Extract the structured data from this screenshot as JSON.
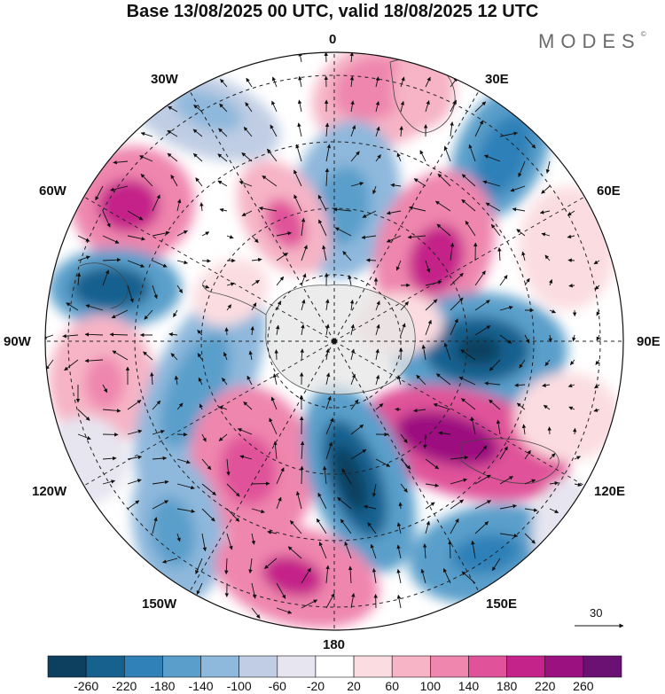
{
  "title": "Base 13/08/2025 00 UTC, valid 18/08/2025 12 UTC",
  "brand": {
    "name": "MODES",
    "mark": "©"
  },
  "longitude_labels": {
    "lon_0": "0",
    "lon_30e": "30E",
    "lon_60e": "60E",
    "lon_90e": "90E",
    "lon_120e": "120E",
    "lon_150e": "150E",
    "lon_180": "180",
    "lon_150w": "150W",
    "lon_120w": "120W",
    "lon_90w": "90W",
    "lon_60w": "60W",
    "lon_30w": "30W"
  },
  "reference_vector": {
    "label": "30"
  },
  "colorbar": {
    "ticks": [
      "-260",
      "-220",
      "-180",
      "-140",
      "-100",
      "-60",
      "-20",
      "20",
      "60",
      "100",
      "140",
      "180",
      "220",
      "260"
    ],
    "colors": [
      "#0d3f5f",
      "#17618f",
      "#2f81b8",
      "#5a9fcb",
      "#8eb8dc",
      "#c0cde4",
      "#e6e5f0",
      "#ffffff",
      "#fbdde1",
      "#f6b4c6",
      "#ef86ae",
      "#e0529a",
      "#c42489",
      "#9c1180",
      "#6b1174"
    ]
  }
}
